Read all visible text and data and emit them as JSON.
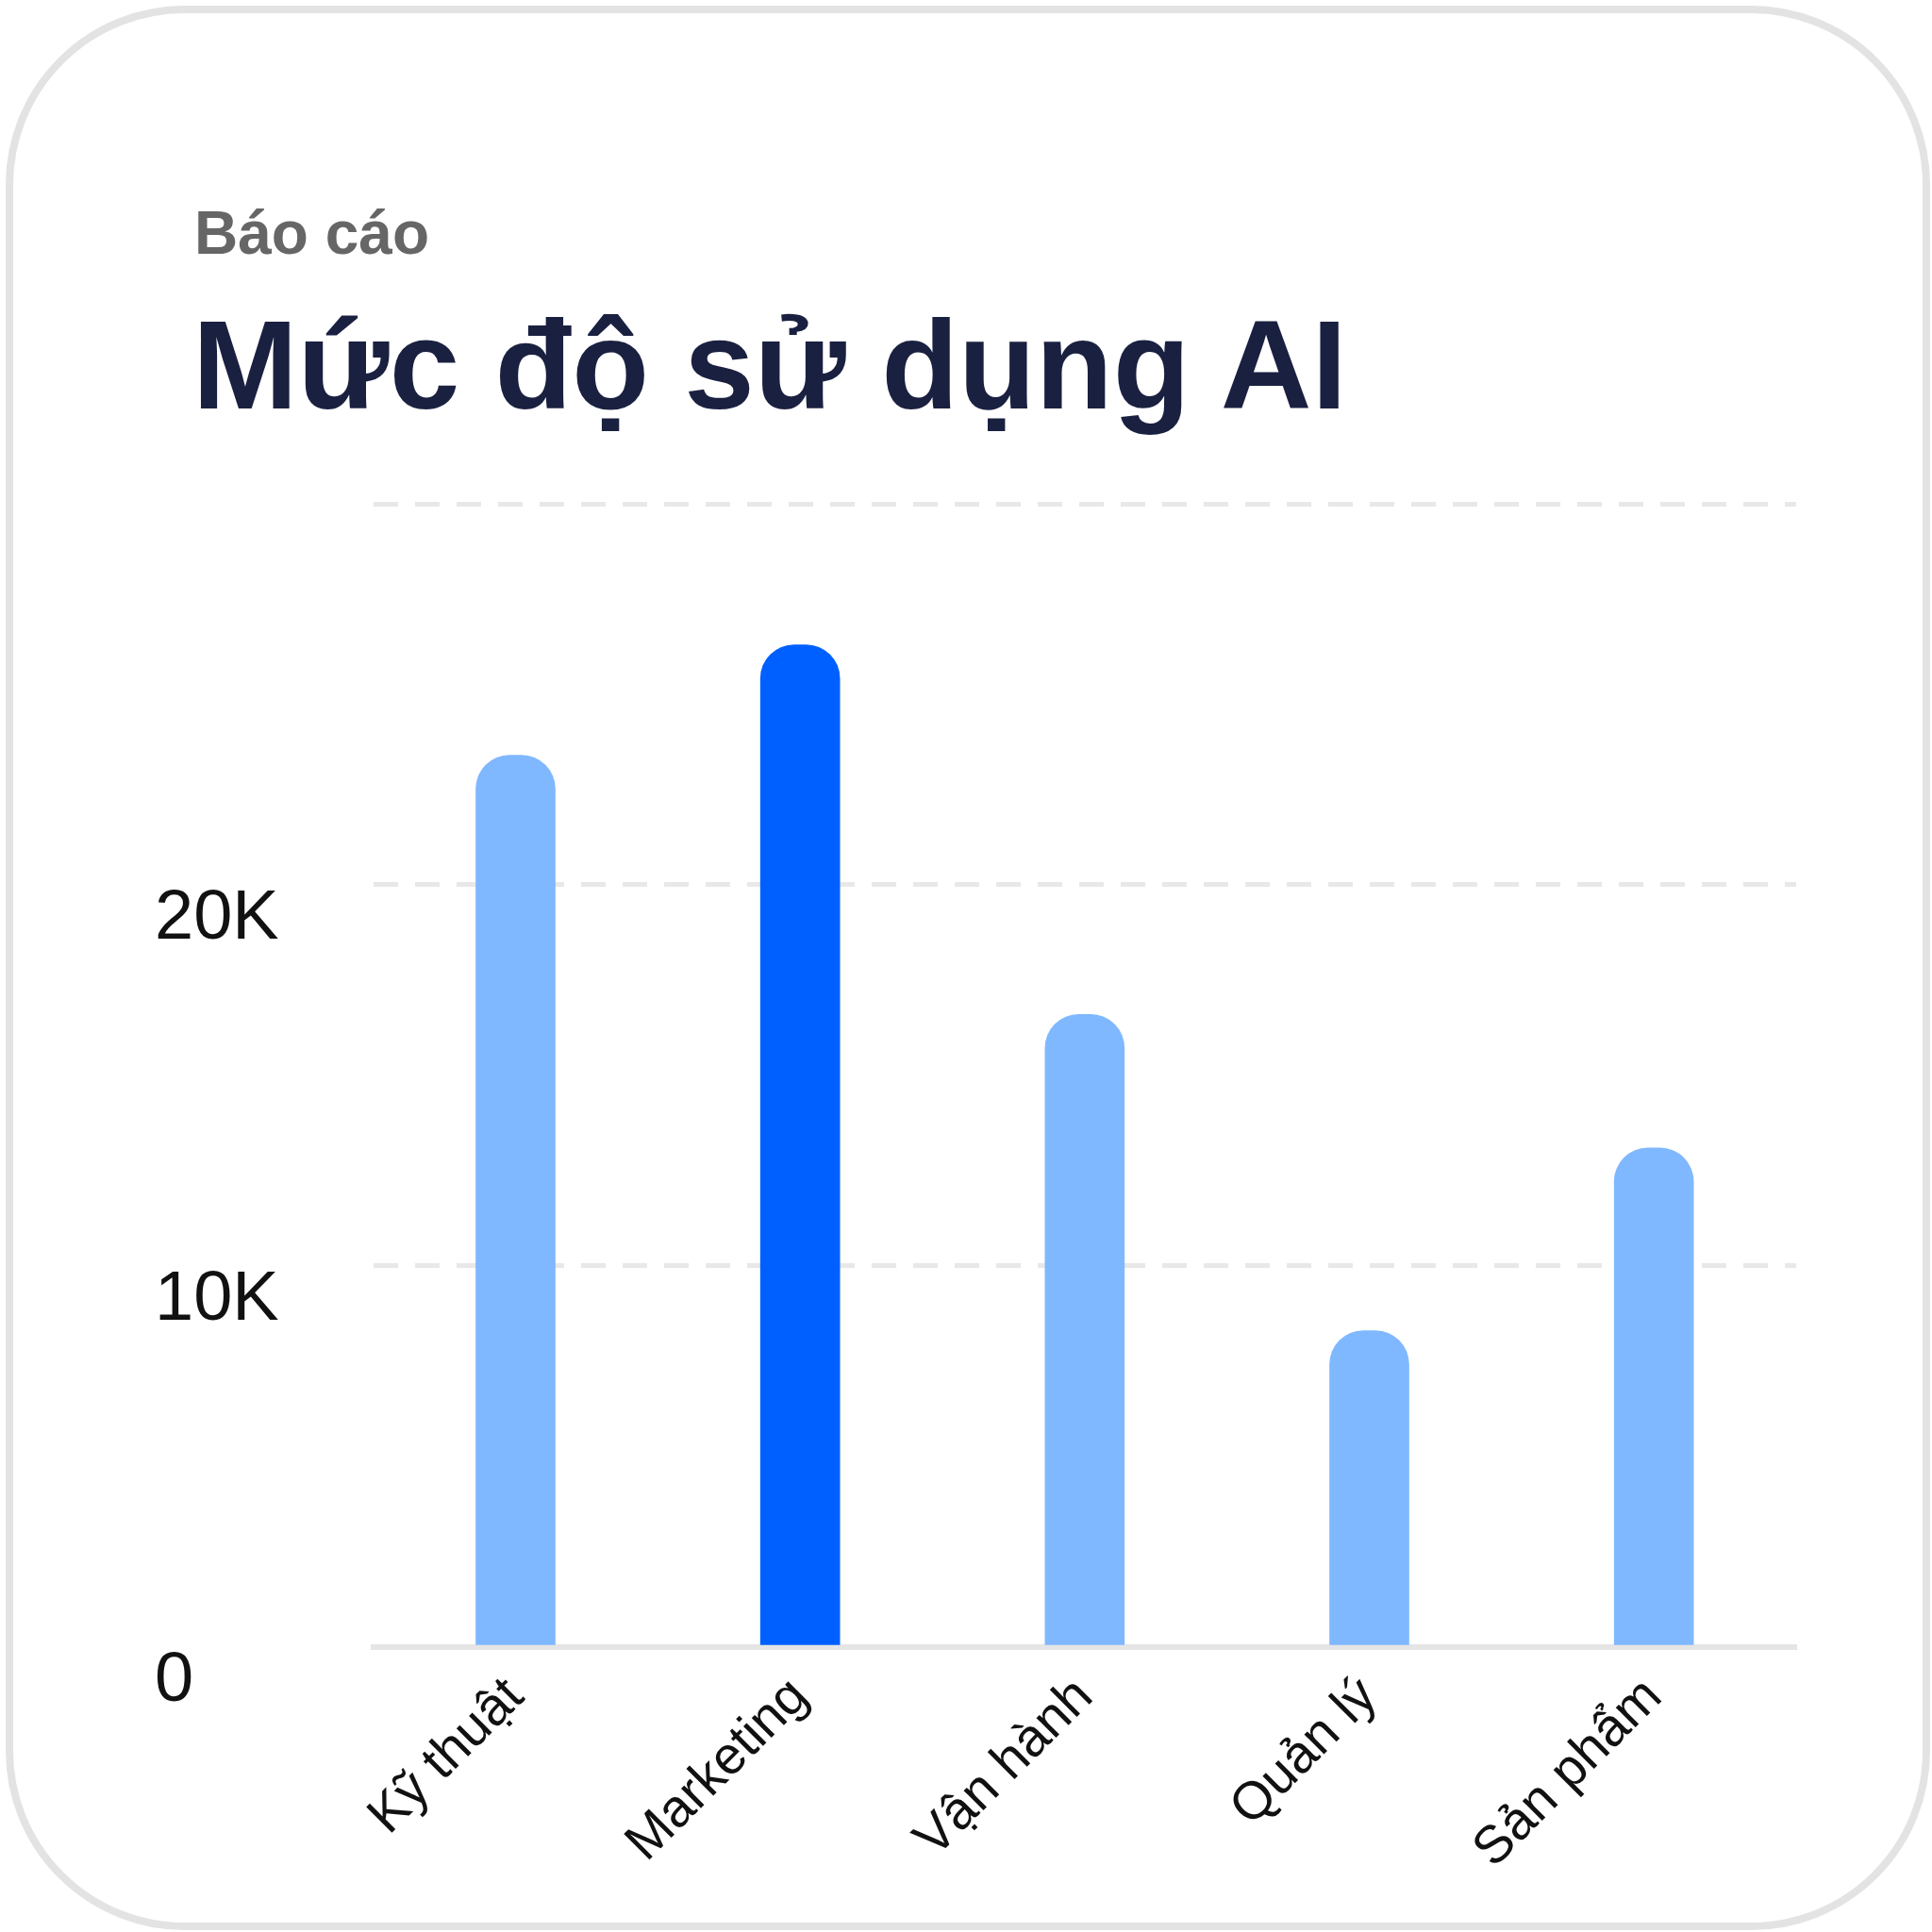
{
  "chart_data": {
    "type": "bar",
    "title": "Mức độ sử dụng AI",
    "subtitle": "Báo cáo",
    "categories": [
      "Kỹ thuật",
      "Marketing",
      "Vận hành",
      "Quản lý",
      "Sản phẩm"
    ],
    "values": [
      23400,
      26300,
      16600,
      8300,
      13100
    ],
    "colors": [
      "#80b8ff",
      "#0060ff",
      "#80b8ff",
      "#80b8ff",
      "#80b8ff"
    ],
    "ylim": [
      0,
      30000
    ],
    "yticks": [
      0,
      {
        "value": 10000,
        "label": "10K"
      },
      {
        "value": 20000,
        "label": "20K"
      },
      {
        "value": 30000,
        "label": null
      }
    ],
    "grid": "y"
  }
}
